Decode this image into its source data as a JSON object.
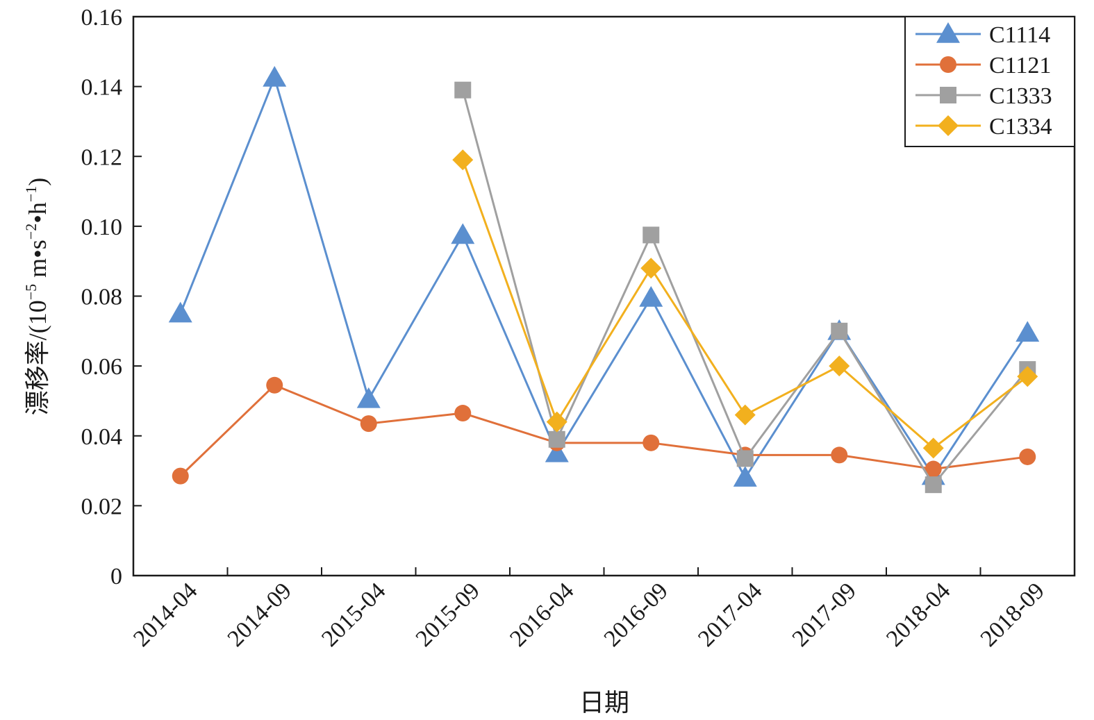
{
  "chart_data": {
    "type": "line",
    "categories": [
      "2014-04",
      "2014-09",
      "2015-04",
      "2015-09",
      "2016-04",
      "2016-09",
      "2017-04",
      "2017-09",
      "2018-04",
      "2018-09"
    ],
    "xlabel": "日期",
    "ylabel_main": "漂移率/(10",
    "ylabel_exp1": "−5",
    "ylabel_mid": " m•s",
    "ylabel_exp2": "−2",
    "ylabel_mid2": "•h",
    "ylabel_exp3": "−1",
    "ylabel_end": ")",
    "ylim": [
      0,
      0.16
    ],
    "yticks": [
      "0",
      "0.02",
      "0.04",
      "0.06",
      "0.08",
      "0.10",
      "0.12",
      "0.14",
      "0.16"
    ],
    "legend_position": "top-right",
    "grid": false,
    "series": [
      {
        "name": "C1114",
        "color": "#5b8fcf",
        "marker": "triangle",
        "values": [
          0.075,
          0.1425,
          0.0505,
          0.0975,
          0.035,
          0.0795,
          0.028,
          0.07,
          0.0285,
          0.0695
        ]
      },
      {
        "name": "C1121",
        "color": "#e0703a",
        "marker": "circle",
        "values": [
          0.0285,
          0.0545,
          0.0435,
          0.0465,
          0.038,
          0.038,
          0.0345,
          0.0345,
          0.0305,
          0.034
        ]
      },
      {
        "name": "C1333",
        "color": "#a0a0a0",
        "marker": "square",
        "values": [
          null,
          null,
          null,
          0.139,
          0.039,
          0.0975,
          0.0335,
          0.07,
          0.026,
          0.059
        ]
      },
      {
        "name": "C1334",
        "color": "#f2b01e",
        "marker": "diamond",
        "values": [
          null,
          null,
          null,
          0.119,
          0.044,
          0.088,
          0.046,
          0.06,
          0.0365,
          0.057
        ]
      }
    ]
  }
}
